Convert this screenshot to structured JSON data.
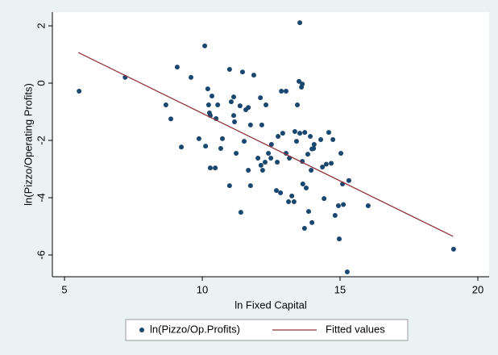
{
  "chart_data": {
    "type": "scatter",
    "x_label": "ln Fixed Capital",
    "y_label": "ln(Pizzo/Operating Profits)",
    "xlim": [
      4.56,
      20.41
    ],
    "ylim": [
      -6.76,
      2.48
    ],
    "xticks": [
      5,
      10,
      15,
      20
    ],
    "yticks": [
      -6,
      -4,
      -2,
      0,
      2
    ],
    "grid": false,
    "legend": "bottom",
    "series": [
      {
        "name": "ln(Pizzo/Op.Profits)",
        "type": "scatter",
        "color": "#1a476f",
        "x": [
          5.53,
          7.2,
          8.68,
          8.86,
          9.09,
          9.24,
          9.59,
          9.88,
          10.09,
          10.2,
          10.23,
          10.26,
          10.29,
          10.35,
          10.12,
          10.29,
          10.47,
          10.5,
          10.56,
          10.73,
          10.67,
          10.99,
          11.05,
          11.14,
          11.17,
          10.99,
          11.14,
          11.23,
          11.37,
          11.4,
          11.46,
          11.52,
          11.58,
          11.67,
          11.75,
          11.87,
          11.67,
          11.75,
          12.02,
          12.11,
          12.13,
          12.16,
          12.19,
          12.28,
          12.31,
          12.4,
          12.49,
          12.51,
          12.69,
          12.75,
          12.84,
          12.87,
          13.04,
          12.72,
          12.92,
          13.04,
          13.13,
          13.16,
          13.25,
          13.33,
          13.36,
          13.42,
          13.45,
          13.51,
          13.54,
          13.6,
          13.63,
          13.65,
          13.71,
          13.77,
          13.83,
          13.86,
          13.92,
          13.95,
          13.98,
          14.04,
          14.06,
          14.3,
          14.36,
          14.42,
          14.5,
          14.59,
          14.68,
          14.74,
          14.82,
          14.94,
          14.97,
          15.03,
          15.09,
          15.12,
          15.26,
          15.32,
          16.02,
          19.12,
          13.54,
          13.63,
          13.98,
          13.72
        ],
        "values": [
          -0.28,
          0.2,
          -0.76,
          -1.25,
          0.56,
          -2.23,
          0.2,
          -1.94,
          1.3,
          -0.2,
          -0.76,
          -1.04,
          -2.96,
          -0.45,
          -2.2,
          -1.13,
          -2.96,
          -1.24,
          -0.76,
          -1.94,
          -2.28,
          0.48,
          -0.65,
          -0.48,
          -1.35,
          -3.58,
          -1.13,
          -2.45,
          -0.79,
          -4.51,
          0.39,
          -2.03,
          -0.93,
          -0.85,
          -1.46,
          0.28,
          -3.04,
          -3.58,
          -2.62,
          -0.51,
          -2.87,
          -1.46,
          -3.04,
          -2.76,
          -0.76,
          -2.45,
          -2.62,
          -2.14,
          -3.75,
          -1.86,
          -3.83,
          -0.28,
          -0.28,
          -2.76,
          -1.75,
          -2.45,
          -4.14,
          -2.62,
          -3.94,
          -4.14,
          -1.69,
          -2.03,
          -0.76,
          0.06,
          -1.75,
          -0.14,
          -2.73,
          -3.52,
          -5.07,
          -3.66,
          -2.48,
          -4.48,
          -1.86,
          -3.04,
          -4.87,
          -2.28,
          -2.14,
          -1.97,
          -2.93,
          -4.03,
          -2.83,
          -1.72,
          -2.8,
          -1.97,
          -4.62,
          -4.28,
          -5.44,
          -2.45,
          -3.52,
          -4.24,
          -6.59,
          -3.4,
          -4.28,
          -5.8,
          2.11,
          -0.03,
          -2.3,
          -1.72
        ]
      },
      {
        "name": "Fitted values",
        "type": "line",
        "color": "#90353b",
        "x": [
          5.5,
          19.1
        ],
        "values": [
          1.07,
          -5.35
        ]
      }
    ]
  }
}
